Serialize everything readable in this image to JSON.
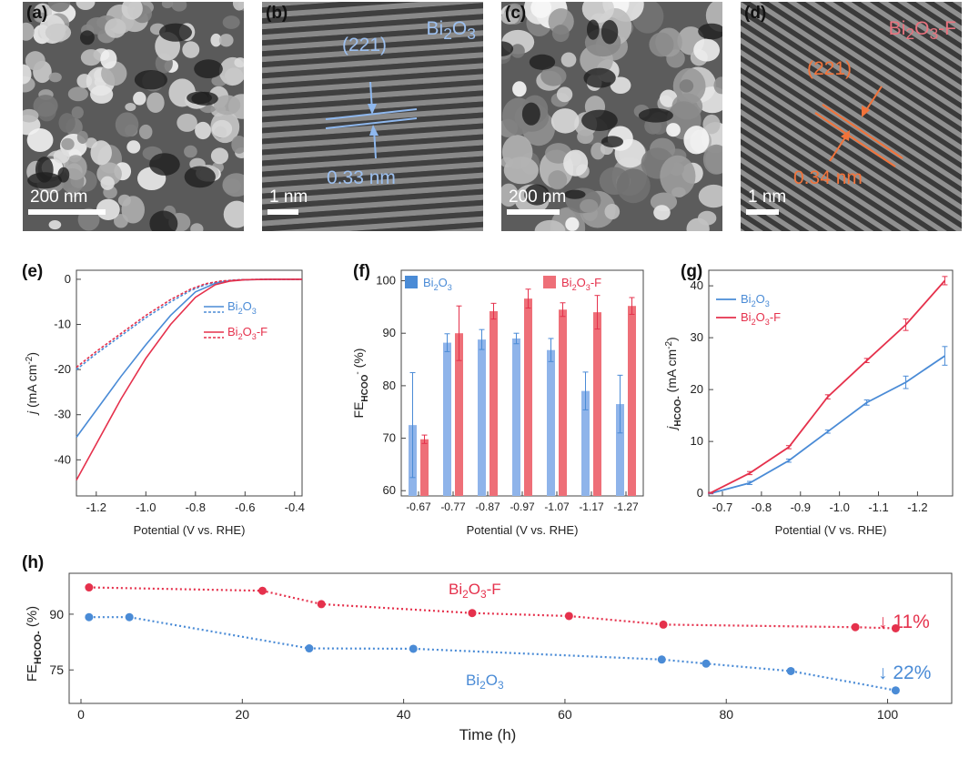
{
  "colors": {
    "blue": "#4a8bd6",
    "red": "#e5314c",
    "bar_blue": "#8fb4ea",
    "bar_red": "#ee6f78",
    "orange": "#f2733a",
    "pink": "#e8727e"
  },
  "panels": {
    "a": {
      "label": "(a)",
      "scale": "200 nm"
    },
    "b": {
      "label": "(b)",
      "scale": "1 nm",
      "title_main": "Bi",
      "title_sub": "2",
      "title_rest": "O",
      "title_sub2": "3",
      "title_tail": "",
      "plane": "(221)",
      "spacing": "0.33 nm"
    },
    "c": {
      "label": "(c)",
      "scale": "200 nm"
    },
    "d": {
      "label": "(d)",
      "scale": "1 nm",
      "title_main": "Bi",
      "title_sub": "2",
      "title_rest": "O",
      "title_sub2": "3",
      "title_tail": "-F",
      "plane": "(221)",
      "spacing": "0.34 nm"
    },
    "e": {
      "label": "(e)"
    },
    "f": {
      "label": "(f)"
    },
    "g": {
      "label": "(g)"
    },
    "h": {
      "label": "(h)"
    }
  },
  "chart_data": [
    {
      "id": "e",
      "type": "line",
      "xlabel": "Potential (V vs. RHE)",
      "ylabel_main": "j",
      "ylabel_unit": " (mA cm",
      "ylabel_exp": "-2",
      "ylabel_close": ")",
      "xlim": [
        -1.28,
        -0.37
      ],
      "ylim": [
        -48,
        2
      ],
      "xticks": [
        "-1.2",
        "-1.0",
        "-0.8",
        "-0.6",
        "-0.4"
      ],
      "xtick_values": [
        -1.2,
        -1.0,
        -0.8,
        -0.6,
        -0.4
      ],
      "yticks": [
        "0",
        "-10",
        "-20",
        "-30",
        "-40"
      ],
      "ytick_values": [
        0,
        -10,
        -20,
        -30,
        -40
      ],
      "legend": [
        {
          "name": "Bi2O3",
          "main": "Bi",
          "s1": "2",
          "mid": "O",
          "s2": "3",
          "tail": ""
        },
        {
          "name": "Bi2O3-F",
          "main": "Bi",
          "s1": "2",
          "mid": "O",
          "s2": "3",
          "tail": "-F"
        }
      ],
      "series": [
        {
          "name": "Bi2O3",
          "style": "solid",
          "x": [
            -1.28,
            -1.2,
            -1.1,
            -1.0,
            -0.9,
            -0.8,
            -0.72,
            -0.66,
            -0.6,
            -0.5,
            -0.37
          ],
          "y": [
            -35,
            -29,
            -21.5,
            -14.5,
            -8,
            -2.8,
            -0.9,
            -0.3,
            -0.1,
            0,
            0
          ]
        },
        {
          "name": "Bi2O3",
          "style": "dotted",
          "x": [
            -1.28,
            -1.2,
            -1.1,
            -1.0,
            -0.9,
            -0.82,
            -0.76,
            -0.7,
            -0.62,
            -0.5,
            -0.37
          ],
          "y": [
            -20,
            -16.5,
            -12.5,
            -8.5,
            -5,
            -2.5,
            -1.2,
            -0.5,
            -0.1,
            0,
            0
          ]
        },
        {
          "name": "Bi2O3-F",
          "style": "solid",
          "x": [
            -1.28,
            -1.2,
            -1.1,
            -1.0,
            -0.9,
            -0.8,
            -0.72,
            -0.66,
            -0.6,
            -0.5,
            -0.37
          ],
          "y": [
            -44.5,
            -36.5,
            -26.5,
            -17.5,
            -10,
            -4,
            -1.2,
            -0.4,
            -0.1,
            0,
            0
          ]
        },
        {
          "name": "Bi2O3-F",
          "style": "dotted",
          "x": [
            -1.28,
            -1.2,
            -1.1,
            -1.0,
            -0.9,
            -0.82,
            -0.76,
            -0.7,
            -0.62,
            -0.5,
            -0.37
          ],
          "y": [
            -19.5,
            -16,
            -12,
            -8,
            -4.5,
            -2.2,
            -1,
            -0.4,
            -0.1,
            0,
            0
          ]
        }
      ]
    },
    {
      "id": "f",
      "type": "bar",
      "xlabel": "Potential (V vs. RHE)",
      "ylabel_main": "FE",
      "ylabel_sub": "HCOO",
      "ylabel_sup": "-",
      "ylabel_close": " (%)",
      "ylim": [
        59,
        102
      ],
      "yticks": [
        "60",
        "70",
        "80",
        "90",
        "100"
      ],
      "ytick_values": [
        60,
        70,
        80,
        90,
        100
      ],
      "categories": [
        "-0.67",
        "-0.77",
        "-0.87",
        "-0.97",
        "-1.07",
        "-1.17",
        "-1.27"
      ],
      "legend": [
        {
          "name": "Bi2O3",
          "main": "Bi",
          "s1": "2",
          "mid": "O",
          "s2": "3",
          "tail": ""
        },
        {
          "name": "Bi2O3-F",
          "main": "Bi",
          "s1": "2",
          "mid": "O",
          "s2": "3",
          "tail": "-F"
        }
      ],
      "series": [
        {
          "name": "Bi2O3",
          "values": [
            72.5,
            88.2,
            88.8,
            89.0,
            86.8,
            79.0,
            76.5
          ],
          "errors": [
            10,
            1.7,
            1.9,
            1.0,
            2.2,
            3.6,
            5.5
          ]
        },
        {
          "name": "Bi2O3-F",
          "values": [
            69.8,
            90.0,
            94.2,
            96.6,
            94.5,
            94.0,
            95.2
          ],
          "errors": [
            0.8,
            5.2,
            1.5,
            1.8,
            1.3,
            3.2,
            1.6
          ]
        }
      ]
    },
    {
      "id": "g",
      "type": "line",
      "xlabel": "Potential (V vs. RHE)",
      "ylabel_main": "j",
      "ylabel_sub": "HCOO-",
      "ylabel_unit": " (mA cm",
      "ylabel_exp": "-2",
      "ylabel_close": ")",
      "xlim": [
        -0.665,
        -1.29
      ],
      "ylim": [
        -0.5,
        43
      ],
      "xticks": [
        "-0.7",
        "-0.8",
        "-0.9",
        "-1.0",
        "-1.1",
        "-1.2"
      ],
      "xtick_values": [
        -0.7,
        -0.8,
        -0.9,
        -1.0,
        -1.1,
        -1.2
      ],
      "yticks": [
        "0",
        "10",
        "20",
        "30",
        "40"
      ],
      "ytick_values": [
        0,
        10,
        20,
        30,
        40
      ],
      "legend": [
        {
          "name": "Bi2O3",
          "main": "Bi",
          "s1": "2",
          "mid": "O",
          "s2": "3",
          "tail": ""
        },
        {
          "name": "Bi2O3-F",
          "main": "Bi",
          "s1": "2",
          "mid": "O",
          "s2": "3",
          "tail": "-F"
        }
      ],
      "series": [
        {
          "name": "Bi2O3",
          "x": [
            -0.67,
            -0.77,
            -0.87,
            -0.97,
            -1.07,
            -1.17,
            -1.27
          ],
          "y": [
            0,
            2.0,
            6.3,
            11.9,
            17.5,
            21.4,
            26.5
          ],
          "errors": [
            0.1,
            0.3,
            0.3,
            0.3,
            0.5,
            1.2,
            1.8
          ]
        },
        {
          "name": "Bi2O3-F",
          "x": [
            -0.67,
            -0.77,
            -0.87,
            -0.97,
            -1.07,
            -1.17,
            -1.27
          ],
          "y": [
            0.1,
            3.9,
            8.9,
            18.6,
            25.6,
            32.5,
            41.0
          ],
          "errors": [
            0.1,
            0.3,
            0.3,
            0.4,
            0.4,
            1.1,
            0.8
          ]
        }
      ]
    },
    {
      "id": "h",
      "type": "scatter",
      "xlabel": "Time (h)",
      "ylabel_main": "FE",
      "ylabel_sub": "HCOO-",
      "ylabel_close": " (%)",
      "xlim": [
        0,
        104
      ],
      "ylim": [
        66,
        101
      ],
      "xticks": [
        "0",
        "20",
        "40",
        "60",
        "80",
        "100"
      ],
      "xtick_values": [
        0,
        20,
        40,
        60,
        80,
        100
      ],
      "yticks": [
        "75",
        "90"
      ],
      "ytick_values": [
        75,
        90
      ],
      "series": [
        {
          "name": "Bi2O3-F",
          "main": "Bi",
          "s1": "2",
          "mid": "O",
          "s2": "3",
          "tail": "-F",
          "change": "↓ 11%",
          "x": [
            1,
            22.5,
            29.8,
            48.5,
            60.5,
            72.2,
            96,
            101
          ],
          "y": [
            97.2,
            96.3,
            92.7,
            90.3,
            89.5,
            87.2,
            86.5,
            86.2
          ]
        },
        {
          "name": "Bi2O3",
          "main": "Bi",
          "s1": "2",
          "mid": "O",
          "s2": "3",
          "tail": "",
          "change": "↓ 22%",
          "x": [
            1,
            6,
            28.3,
            41.2,
            72,
            77.5,
            88,
            101
          ],
          "y": [
            89.2,
            89.2,
            80.8,
            80.7,
            77.8,
            76.7,
            74.7,
            69.5
          ]
        }
      ]
    }
  ]
}
